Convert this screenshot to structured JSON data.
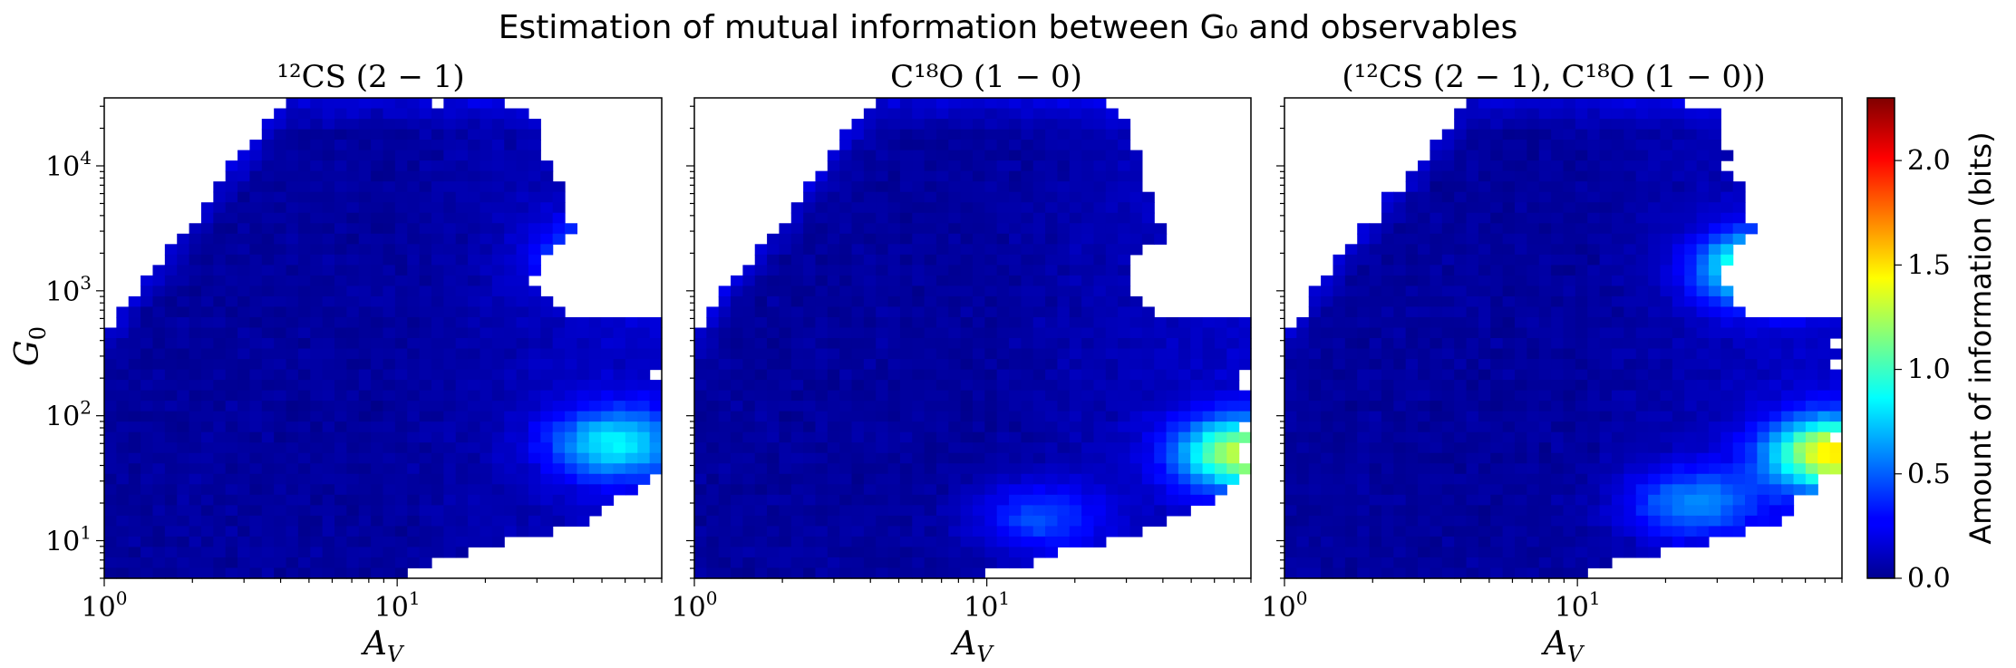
{
  "figure": {
    "title": "Estimation of mutual information between G₀ and observables"
  },
  "chart_data": [
    {
      "type": "heatmap",
      "title": "¹²CS (2 − 1)",
      "xlabel": "A_V",
      "ylabel": "G₀",
      "x_scale": "log",
      "y_scale": "log",
      "xlim": [
        1,
        80
      ],
      "ylim": [
        5,
        35000
      ],
      "x_ticks": [
        "10⁰",
        "10¹"
      ],
      "y_ticks": [
        "10¹",
        "10²",
        "10³",
        "10⁴"
      ],
      "hotspots": [
        {
          "Av": 55,
          "G0": 1800,
          "value": 0.8
        },
        {
          "Av": 55,
          "G0": 60,
          "value": 0.7
        }
      ]
    },
    {
      "type": "heatmap",
      "title": "C¹⁸O (1 − 0)",
      "xlabel": "A_V",
      "x_scale": "log",
      "y_scale": "log",
      "xlim": [
        1,
        80
      ],
      "ylim": [
        5,
        35000
      ],
      "x_ticks": [
        "10⁰",
        "10¹"
      ],
      "hotspots": [
        {
          "Av": 75,
          "G0": 50,
          "value": 1.15
        },
        {
          "Av": 15,
          "G0": 15,
          "value": 0.35
        }
      ]
    },
    {
      "type": "heatmap",
      "title": "(¹²CS (2 − 1), C¹⁸O (1 − 0))",
      "xlabel": "A_V",
      "x_scale": "log",
      "y_scale": "log",
      "xlim": [
        1,
        80
      ],
      "ylim": [
        5,
        35000
      ],
      "x_ticks": [
        "10⁰",
        "10¹"
      ],
      "hotspots": [
        {
          "Av": 45,
          "G0": 1500,
          "value": 1.25
        },
        {
          "Av": 75,
          "G0": 50,
          "value": 1.35
        },
        {
          "Av": 25,
          "G0": 20,
          "value": 0.5
        }
      ]
    }
  ],
  "colorbar": {
    "label": "Amount of information (bits)",
    "range": [
      0.0,
      2.3
    ],
    "ticks": [
      "0.0",
      "0.5",
      "1.0",
      "1.5",
      "2.0"
    ],
    "colormap": "jet"
  },
  "labels": {
    "xlabel_A": "A",
    "xlabel_sub": "V",
    "ylabel_G": "G",
    "ylabel_sub": "0",
    "tick_base": "10",
    "exp0": "0",
    "exp1": "1",
    "exp2": "2",
    "exp3": "3",
    "exp4": "4"
  }
}
